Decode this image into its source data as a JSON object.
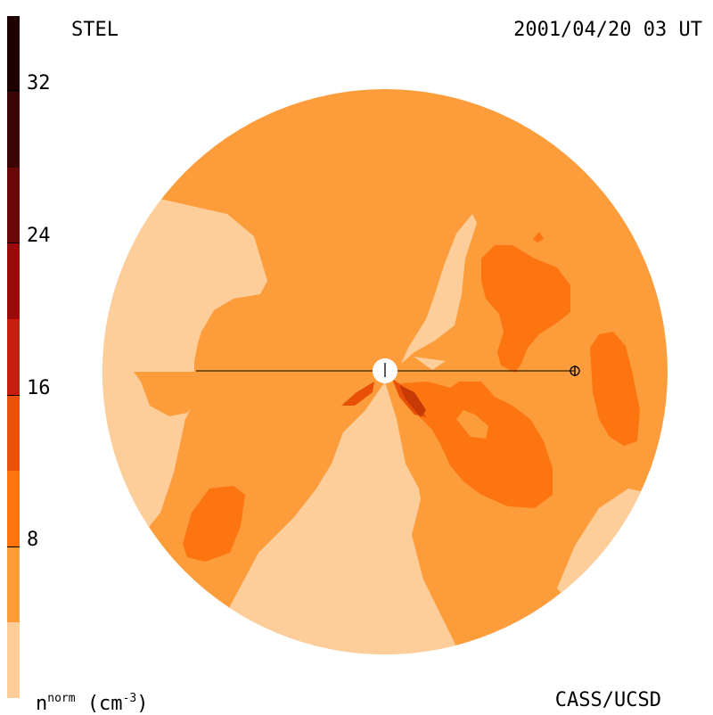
{
  "header": {
    "title": "STEL",
    "timestamp": "2001/04/20 03 UT"
  },
  "footer": {
    "credit": "CASS/UCSD"
  },
  "colorbar": {
    "unit_base": "n",
    "unit_sup": "norm",
    "unit_rest": "(cm",
    "unit_exp": "-3",
    "unit_close": ")",
    "ticks": [
      "32",
      "24",
      "16",
      "8"
    ],
    "colors": [
      "#fdcd9a",
      "#fd9c3a",
      "#fc7510",
      "#e8520d",
      "#c81d0f",
      "#990a0a",
      "#6a0808",
      "#3b0505",
      "#1e0202"
    ]
  },
  "plot_colors": {
    "lightest": "#fdcd9a",
    "light": "#fd9c3a",
    "medium": "#fc7510",
    "dark": "#e85008",
    "darkest": "#c83a05"
  }
}
